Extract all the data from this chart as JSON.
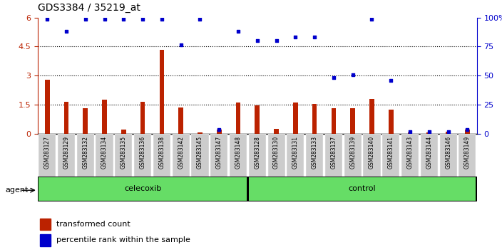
{
  "title": "GDS3384 / 35219_at",
  "samples": [
    "GSM283127",
    "GSM283129",
    "GSM283132",
    "GSM283134",
    "GSM283135",
    "GSM283136",
    "GSM283138",
    "GSM283142",
    "GSM283145",
    "GSM283147",
    "GSM283148",
    "GSM283128",
    "GSM283130",
    "GSM283131",
    "GSM283133",
    "GSM283137",
    "GSM283139",
    "GSM283140",
    "GSM283141",
    "GSM283143",
    "GSM283144",
    "GSM283146",
    "GSM283149"
  ],
  "red_values": [
    2.8,
    1.65,
    1.3,
    1.75,
    0.22,
    1.65,
    4.35,
    1.35,
    0.07,
    0.2,
    1.6,
    1.45,
    0.25,
    1.6,
    1.55,
    1.3,
    1.3,
    1.8,
    1.25,
    0.07,
    0.07,
    0.1,
    0.2
  ],
  "blue_values": [
    5.9,
    5.3,
    5.9,
    5.9,
    5.9,
    5.9,
    5.9,
    4.6,
    5.9,
    0.22,
    5.3,
    4.8,
    4.8,
    5.0,
    5.0,
    2.9,
    3.05,
    5.9,
    2.75,
    0.1,
    0.1,
    0.1,
    0.22
  ],
  "bar_color": "#BB2200",
  "dot_color": "#0000CC",
  "ylim_left": [
    0,
    6
  ],
  "yticks_left": [
    0,
    1.5,
    3.0,
    4.5,
    6
  ],
  "ytick_labels_left": [
    "0",
    "1.5",
    "3",
    "4.5",
    "6"
  ],
  "ytick_labels_right": [
    "0",
    "25",
    "50",
    "75",
    "100%"
  ],
  "hlines": [
    1.5,
    3.0,
    4.5
  ],
  "celecoxib_range": [
    0,
    10
  ],
  "control_range": [
    11,
    22
  ],
  "group_bg": "#66DD66",
  "tick_bg": "#CCCCCC",
  "plot_bg": "#FFFFFF"
}
